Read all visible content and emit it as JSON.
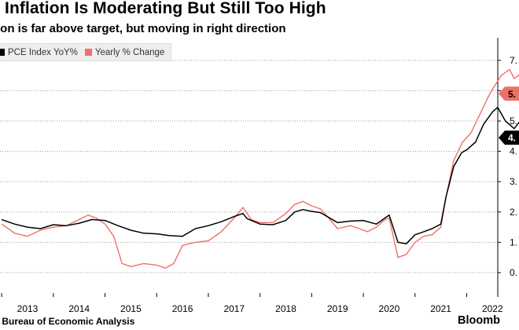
{
  "header": {
    "title": "E Inflation Is Moderating But Still Too High",
    "subtitle": "tion is far above target, but moving in right direction"
  },
  "legend": [
    {
      "label": "PCE Index YoY%",
      "color": "#000000"
    },
    {
      "label": "Yearly % Change",
      "color": "#ef7067"
    }
  ],
  "footer": {
    "source": ": Bureau of Economic Analysis",
    "brand": "Bloomb"
  },
  "chart_data": {
    "type": "line",
    "title": "E Inflation Is Moderating But Still Too High",
    "subtitle": "tion is far above target, but moving in right direction",
    "xlabel": "",
    "ylabel": "",
    "x_range": [
      2012.5,
      2022.75
    ],
    "ylim": [
      -0.5,
      7.5
    ],
    "x_ticks": [
      2013,
      2014,
      2015,
      2016,
      2017,
      2018,
      2019,
      2020,
      2021,
      2022
    ],
    "x_tick_labels": [
      "2013",
      "2014",
      "2015",
      "2016",
      "2017",
      "2018",
      "2019",
      "2020",
      "2021",
      "2022"
    ],
    "y_ticks": [
      0,
      1,
      2,
      3,
      4,
      5,
      6,
      7
    ],
    "y_tick_labels": [
      "0.",
      "1.",
      "2.",
      "3.",
      "4.",
      "5.",
      "6.",
      "7."
    ],
    "grid": "horizontal dotted",
    "axis_side": "right",
    "legend_position": "top-left",
    "series": [
      {
        "name": "PCE Index YoY%",
        "color": "#000000",
        "last_label": "4.",
        "points": [
          [
            2012.5,
            1.75
          ],
          [
            2012.75,
            1.6
          ],
          [
            2013.0,
            1.5
          ],
          [
            2013.25,
            1.45
          ],
          [
            2013.5,
            1.58
          ],
          [
            2013.75,
            1.55
          ],
          [
            2014.0,
            1.63
          ],
          [
            2014.25,
            1.75
          ],
          [
            2014.5,
            1.72
          ],
          [
            2014.75,
            1.55
          ],
          [
            2015.0,
            1.4
          ],
          [
            2015.25,
            1.3
          ],
          [
            2015.5,
            1.28
          ],
          [
            2015.75,
            1.22
          ],
          [
            2016.0,
            1.2
          ],
          [
            2016.25,
            1.45
          ],
          [
            2016.5,
            1.55
          ],
          [
            2016.75,
            1.68
          ],
          [
            2017.0,
            1.85
          ],
          [
            2017.17,
            1.95
          ],
          [
            2017.25,
            1.78
          ],
          [
            2017.5,
            1.6
          ],
          [
            2017.75,
            1.58
          ],
          [
            2018.0,
            1.72
          ],
          [
            2018.17,
            2.0
          ],
          [
            2018.33,
            2.08
          ],
          [
            2018.5,
            2.02
          ],
          [
            2018.67,
            1.98
          ],
          [
            2018.83,
            1.82
          ],
          [
            2019.0,
            1.65
          ],
          [
            2019.25,
            1.7
          ],
          [
            2019.5,
            1.72
          ],
          [
            2019.75,
            1.6
          ],
          [
            2020.0,
            1.9
          ],
          [
            2020.17,
            1.0
          ],
          [
            2020.33,
            0.95
          ],
          [
            2020.5,
            1.25
          ],
          [
            2020.67,
            1.35
          ],
          [
            2020.83,
            1.45
          ],
          [
            2021.0,
            1.6
          ],
          [
            2021.1,
            2.5
          ],
          [
            2021.25,
            3.5
          ],
          [
            2021.4,
            3.95
          ],
          [
            2021.5,
            4.05
          ],
          [
            2021.67,
            4.3
          ],
          [
            2021.83,
            4.9
          ],
          [
            2022.0,
            5.3
          ],
          [
            2022.1,
            5.45
          ],
          [
            2022.25,
            5.0
          ],
          [
            2022.42,
            4.75
          ],
          [
            2022.58,
            5.1
          ],
          [
            2022.67,
            4.8
          ],
          [
            2022.75,
            4.45
          ]
        ]
      },
      {
        "name": "Yearly % Change",
        "color": "#ef7067",
        "last_label": "5.",
        "points": [
          [
            2012.5,
            1.6
          ],
          [
            2012.75,
            1.3
          ],
          [
            2013.0,
            1.2
          ],
          [
            2013.25,
            1.4
          ],
          [
            2013.5,
            1.5
          ],
          [
            2013.75,
            1.55
          ],
          [
            2014.0,
            1.75
          ],
          [
            2014.17,
            1.9
          ],
          [
            2014.33,
            1.8
          ],
          [
            2014.5,
            1.6
          ],
          [
            2014.67,
            1.2
          ],
          [
            2014.83,
            0.3
          ],
          [
            2015.0,
            0.2
          ],
          [
            2015.25,
            0.3
          ],
          [
            2015.5,
            0.25
          ],
          [
            2015.67,
            0.15
          ],
          [
            2015.83,
            0.3
          ],
          [
            2016.0,
            0.9
          ],
          [
            2016.25,
            1.0
          ],
          [
            2016.5,
            1.05
          ],
          [
            2016.75,
            1.35
          ],
          [
            2017.0,
            1.8
          ],
          [
            2017.17,
            2.15
          ],
          [
            2017.33,
            1.75
          ],
          [
            2017.5,
            1.65
          ],
          [
            2017.75,
            1.65
          ],
          [
            2017.92,
            1.85
          ],
          [
            2018.0,
            1.95
          ],
          [
            2018.17,
            2.25
          ],
          [
            2018.33,
            2.35
          ],
          [
            2018.5,
            2.2
          ],
          [
            2018.67,
            2.1
          ],
          [
            2018.83,
            1.8
          ],
          [
            2019.0,
            1.45
          ],
          [
            2019.25,
            1.55
          ],
          [
            2019.42,
            1.45
          ],
          [
            2019.58,
            1.35
          ],
          [
            2019.75,
            1.5
          ],
          [
            2019.92,
            1.75
          ],
          [
            2020.0,
            1.8
          ],
          [
            2020.17,
            0.5
          ],
          [
            2020.33,
            0.6
          ],
          [
            2020.5,
            1.0
          ],
          [
            2020.67,
            1.2
          ],
          [
            2020.83,
            1.25
          ],
          [
            2021.0,
            1.5
          ],
          [
            2021.1,
            2.5
          ],
          [
            2021.25,
            3.7
          ],
          [
            2021.42,
            4.3
          ],
          [
            2021.58,
            4.6
          ],
          [
            2021.75,
            5.2
          ],
          [
            2021.92,
            5.8
          ],
          [
            2022.0,
            6.05
          ],
          [
            2022.17,
            6.5
          ],
          [
            2022.33,
            6.7
          ],
          [
            2022.42,
            6.4
          ],
          [
            2022.58,
            6.6
          ],
          [
            2022.67,
            6.8
          ],
          [
            2022.75,
            5.9
          ]
        ]
      }
    ]
  }
}
